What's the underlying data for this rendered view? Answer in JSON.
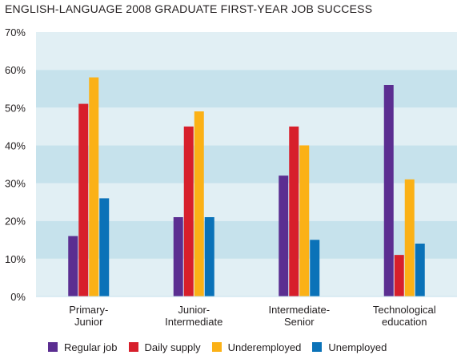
{
  "chart_data": {
    "type": "bar",
    "title": "ENGLISH-LANGUAGE 2008 GRADUATE FIRST-YEAR JOB SUCCESS",
    "xlabel": "",
    "ylabel": "",
    "ylim": [
      0,
      70
    ],
    "yticks": [
      "0%",
      "10%",
      "20%",
      "30%",
      "40%",
      "50%",
      "60%",
      "70%"
    ],
    "categories": [
      [
        "Primary-",
        "Junior"
      ],
      [
        "Junior-",
        "Intermediate"
      ],
      [
        "Intermediate-",
        "Senior"
      ],
      [
        "Technological",
        "education"
      ]
    ],
    "series": [
      {
        "name": "Regular job",
        "color": "#5b2e91",
        "values": [
          16,
          21,
          32,
          56
        ]
      },
      {
        "name": "Daily supply",
        "color": "#d71f2b",
        "values": [
          51,
          45,
          45,
          11
        ]
      },
      {
        "name": "Underemployed",
        "color": "#fbb116",
        "values": [
          58,
          49,
          40,
          31
        ]
      },
      {
        "name": "Unemployed",
        "color": "#0a72b8",
        "values": [
          26,
          21,
          15,
          14
        ]
      }
    ],
    "grid": "alternating horizontal bands",
    "legend_position": "bottom",
    "band_colors": [
      "#e1eff4",
      "#c6e2ec"
    ]
  }
}
